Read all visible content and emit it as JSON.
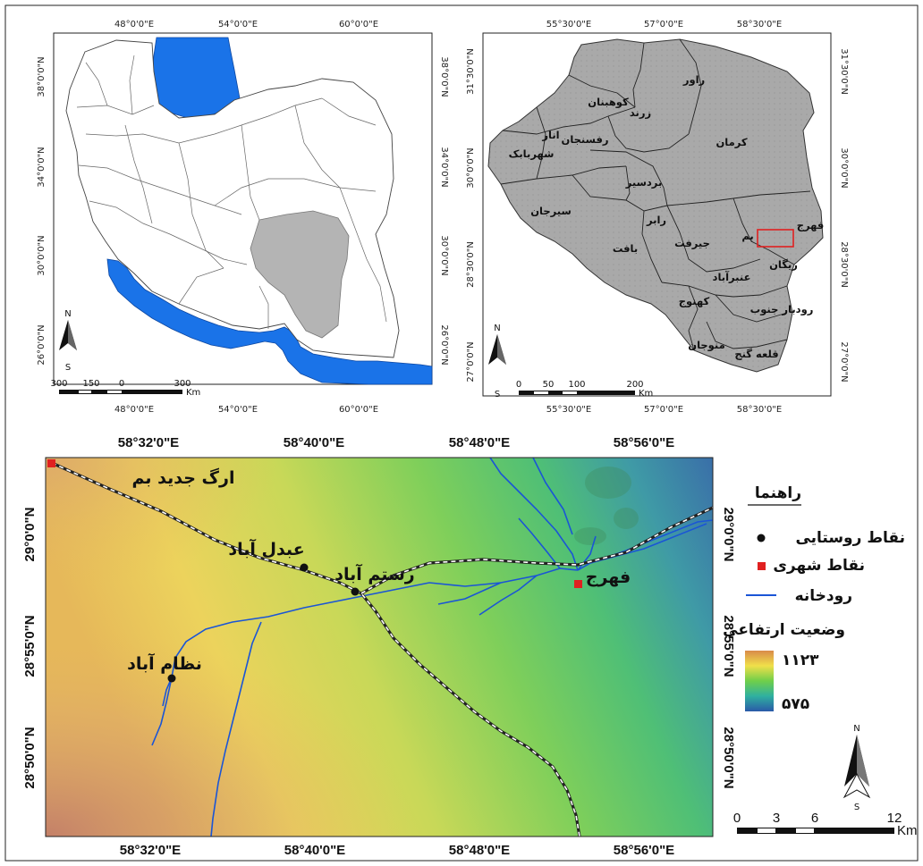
{
  "iran_map": {
    "top_ticks": [
      "48°0'0\"E",
      "54°0'0\"E",
      "60°0'0\"E"
    ],
    "bottom_ticks": [
      "48°0'0\"E",
      "54°0'0\"E",
      "60°0'0\"E"
    ],
    "left_ticks": [
      "38°0'0\"N",
      "34°0'0\"N",
      "30°0'0\"N",
      "26°0'0\"N"
    ],
    "right_ticks": [
      "38°0'0\"N",
      "34°0'0\"N",
      "30°0'0\"N",
      "26°0'0\"N"
    ],
    "scale_labels": [
      "300",
      "150",
      "0",
      "300"
    ],
    "scale_unit": "Km",
    "north": "N",
    "south": "S",
    "colors": {
      "water": "#1a73e8",
      "province": "#b4b4b4"
    }
  },
  "kerman_map": {
    "top_ticks": [
      "55°30'0\"E",
      "57°0'0\"E",
      "58°30'0\"E"
    ],
    "bottom_ticks": [
      "55°30'0\"E",
      "57°0'0\"E",
      "58°30'0\"E"
    ],
    "left_ticks": [
      "31°30'0\"N",
      "30°0'0\"N",
      "28°30'0\"N",
      "27°0'0\"N"
    ],
    "right_ticks": [
      "31°30'0\"N",
      "30°0'0\"N",
      "28°30'0\"N",
      "27°0'0\"N"
    ],
    "counties": [
      "راور",
      "کوهبنان",
      "زرند",
      "انار",
      "رفسنجان",
      "شهربابک",
      "کرمان",
      "بردسیر",
      "سیرجان",
      "رابر",
      "بافت",
      "جیرفت",
      "بم",
      "فهرج",
      "ریگان",
      "عنبرآباد",
      "کهنوج",
      "رودبار جنوب",
      "منوجان",
      "قلعه گنج"
    ],
    "scale_labels": [
      "0",
      "50",
      "100",
      "200"
    ],
    "scale_unit": "Km",
    "north": "N",
    "south": "S",
    "colors": {
      "study_area_box": "#e02020"
    }
  },
  "study_map": {
    "top_ticks": [
      "58°32'0\"E",
      "58°40'0\"E",
      "58°48'0\"E",
      "58°56'0\"E"
    ],
    "bottom_ticks": [
      "58°32'0\"E",
      "58°40'0\"E",
      "58°48'0\"E",
      "58°56'0\"E"
    ],
    "left_ticks": [
      "29°0'0\"N",
      "28°55'0\"N",
      "28°50'0\"N"
    ],
    "right_ticks": [
      "29°0'0\"N",
      "28°55'0\"N",
      "28°50'0\"N"
    ],
    "places": {
      "arg": "ارگ جدید بم",
      "abdolabad": "عبدل آباد",
      "rostamabad": "رستم آباد",
      "fahraj": "فهرج",
      "nezamabad": "نظام آباد"
    },
    "legend": {
      "title": "راهنما",
      "village": "نقاط روستایی",
      "city": "نقاط شهری",
      "river": "رودخانه",
      "elevation_title": "وضعیت ارتفاعی",
      "elev_max": "۱۱۲۳",
      "elev_min": "۵۷۵"
    },
    "scale_labels": [
      "0",
      "3",
      "6",
      "12"
    ],
    "scale_unit": "Km",
    "north": "N",
    "south": "S",
    "colors": {
      "river": "#1a55d6",
      "city": "#e02020",
      "village": "#111111"
    }
  }
}
